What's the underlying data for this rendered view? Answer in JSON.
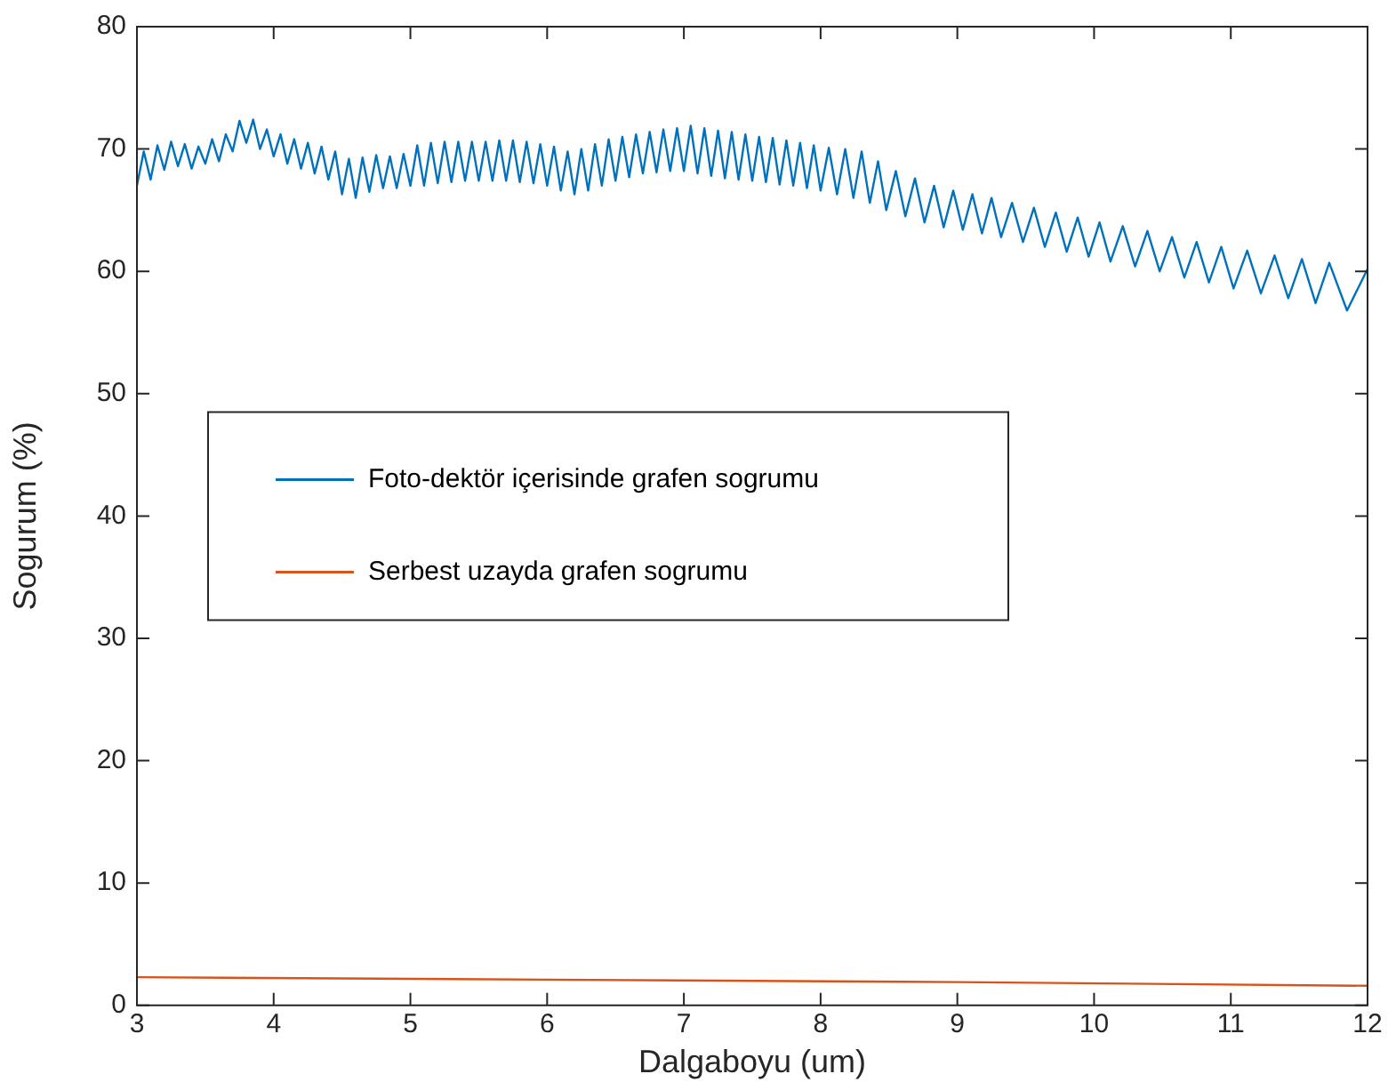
{
  "chart_data": {
    "type": "line",
    "xlabel": "Dalgaboyu (um)",
    "ylabel": "Sogurum (%)",
    "xlim": [
      3,
      12
    ],
    "xticks": [
      3,
      4,
      5,
      6,
      7,
      8,
      9,
      10,
      11,
      12
    ],
    "ylim": [
      0,
      80
    ],
    "yticks": [
      0,
      10,
      20,
      30,
      40,
      50,
      60,
      70,
      80
    ],
    "grid": false,
    "legend": "center left",
    "marker": "none",
    "line_style": "solid",
    "series": [
      {
        "name": "Foto-dektör içerisinde grafen sogrumu",
        "color": "#0072bd",
        "x": [
          3.0,
          3.05,
          3.1,
          3.15,
          3.2,
          3.25,
          3.3,
          3.35,
          3.4,
          3.45,
          3.5,
          3.55,
          3.6,
          3.65,
          3.7,
          3.75,
          3.8,
          3.85,
          3.9,
          3.95,
          4.0,
          4.05,
          4.1,
          4.15,
          4.2,
          4.25,
          4.3,
          4.35,
          4.4,
          4.45,
          4.5,
          4.55,
          4.6,
          4.65,
          4.7,
          4.75,
          4.8,
          4.85,
          4.9,
          4.95,
          5.0,
          5.05,
          5.1,
          5.15,
          5.2,
          5.25,
          5.3,
          5.35,
          5.4,
          5.45,
          5.5,
          5.55,
          5.6,
          5.65,
          5.7,
          5.75,
          5.8,
          5.85,
          5.9,
          5.95,
          6.0,
          6.05,
          6.1,
          6.15,
          6.2,
          6.25,
          6.3,
          6.35,
          6.4,
          6.45,
          6.5,
          6.55,
          6.6,
          6.65,
          6.7,
          6.75,
          6.8,
          6.85,
          6.9,
          6.95,
          7.0,
          7.05,
          7.1,
          7.15,
          7.2,
          7.25,
          7.3,
          7.35,
          7.4,
          7.45,
          7.5,
          7.55,
          7.6,
          7.65,
          7.7,
          7.75,
          7.8,
          7.85,
          7.9,
          7.95,
          8.0,
          8.06,
          8.12,
          8.18,
          8.24,
          8.3,
          8.36,
          8.42,
          8.48,
          8.55,
          8.62,
          8.69,
          8.76,
          8.83,
          8.9,
          8.97,
          9.04,
          9.11,
          9.18,
          9.25,
          9.32,
          9.4,
          9.48,
          9.56,
          9.64,
          9.72,
          9.8,
          9.88,
          9.96,
          10.04,
          10.12,
          10.21,
          10.3,
          10.39,
          10.48,
          10.57,
          10.66,
          10.75,
          10.84,
          10.93,
          11.02,
          11.12,
          11.22,
          11.32,
          11.42,
          11.52,
          11.62,
          11.72,
          11.85,
          12.0
        ],
        "values": [
          67.0,
          69.8,
          67.5,
          70.3,
          68.3,
          70.6,
          68.6,
          70.4,
          68.4,
          70.2,
          68.8,
          70.8,
          69.0,
          71.2,
          69.8,
          72.3,
          70.5,
          72.4,
          70.0,
          71.6,
          69.4,
          71.2,
          68.8,
          70.8,
          68.4,
          70.5,
          68.0,
          70.2,
          67.5,
          69.8,
          66.3,
          69.2,
          66.0,
          69.3,
          66.5,
          69.5,
          66.8,
          69.4,
          66.8,
          69.6,
          67.0,
          70.3,
          67.0,
          70.5,
          67.2,
          70.6,
          67.3,
          70.6,
          67.4,
          70.6,
          67.4,
          70.6,
          67.4,
          70.7,
          67.4,
          70.7,
          67.3,
          70.6,
          67.2,
          70.4,
          67.0,
          70.2,
          66.6,
          69.8,
          66.3,
          70.0,
          66.6,
          70.4,
          67.0,
          70.8,
          67.4,
          71.0,
          67.7,
          71.2,
          68.0,
          71.4,
          68.1,
          71.6,
          68.2,
          71.7,
          68.2,
          71.9,
          68.0,
          71.7,
          67.8,
          71.5,
          67.6,
          71.4,
          67.5,
          71.2,
          67.4,
          71.0,
          67.3,
          70.9,
          67.1,
          70.7,
          67.0,
          70.5,
          66.8,
          70.3,
          66.6,
          70.1,
          66.3,
          70.0,
          66.0,
          69.8,
          65.6,
          69.0,
          65.0,
          68.2,
          64.5,
          67.6,
          64.0,
          67.0,
          63.6,
          66.6,
          63.4,
          66.3,
          63.1,
          66.0,
          62.8,
          65.6,
          62.4,
          65.2,
          62.0,
          64.8,
          61.6,
          64.4,
          61.2,
          64.0,
          60.8,
          63.7,
          60.4,
          63.3,
          60.0,
          62.8,
          59.5,
          62.4,
          59.1,
          62.0,
          58.6,
          61.7,
          58.2,
          61.3,
          57.8,
          61.0,
          57.4,
          60.7,
          56.8,
          60.2
        ]
      },
      {
        "name": "Serbest uzayda grafen sogrumu",
        "color": "#d95319",
        "x": [
          3,
          6,
          9,
          12
        ],
        "values": [
          2.3,
          2.1,
          1.9,
          1.6
        ]
      }
    ]
  }
}
